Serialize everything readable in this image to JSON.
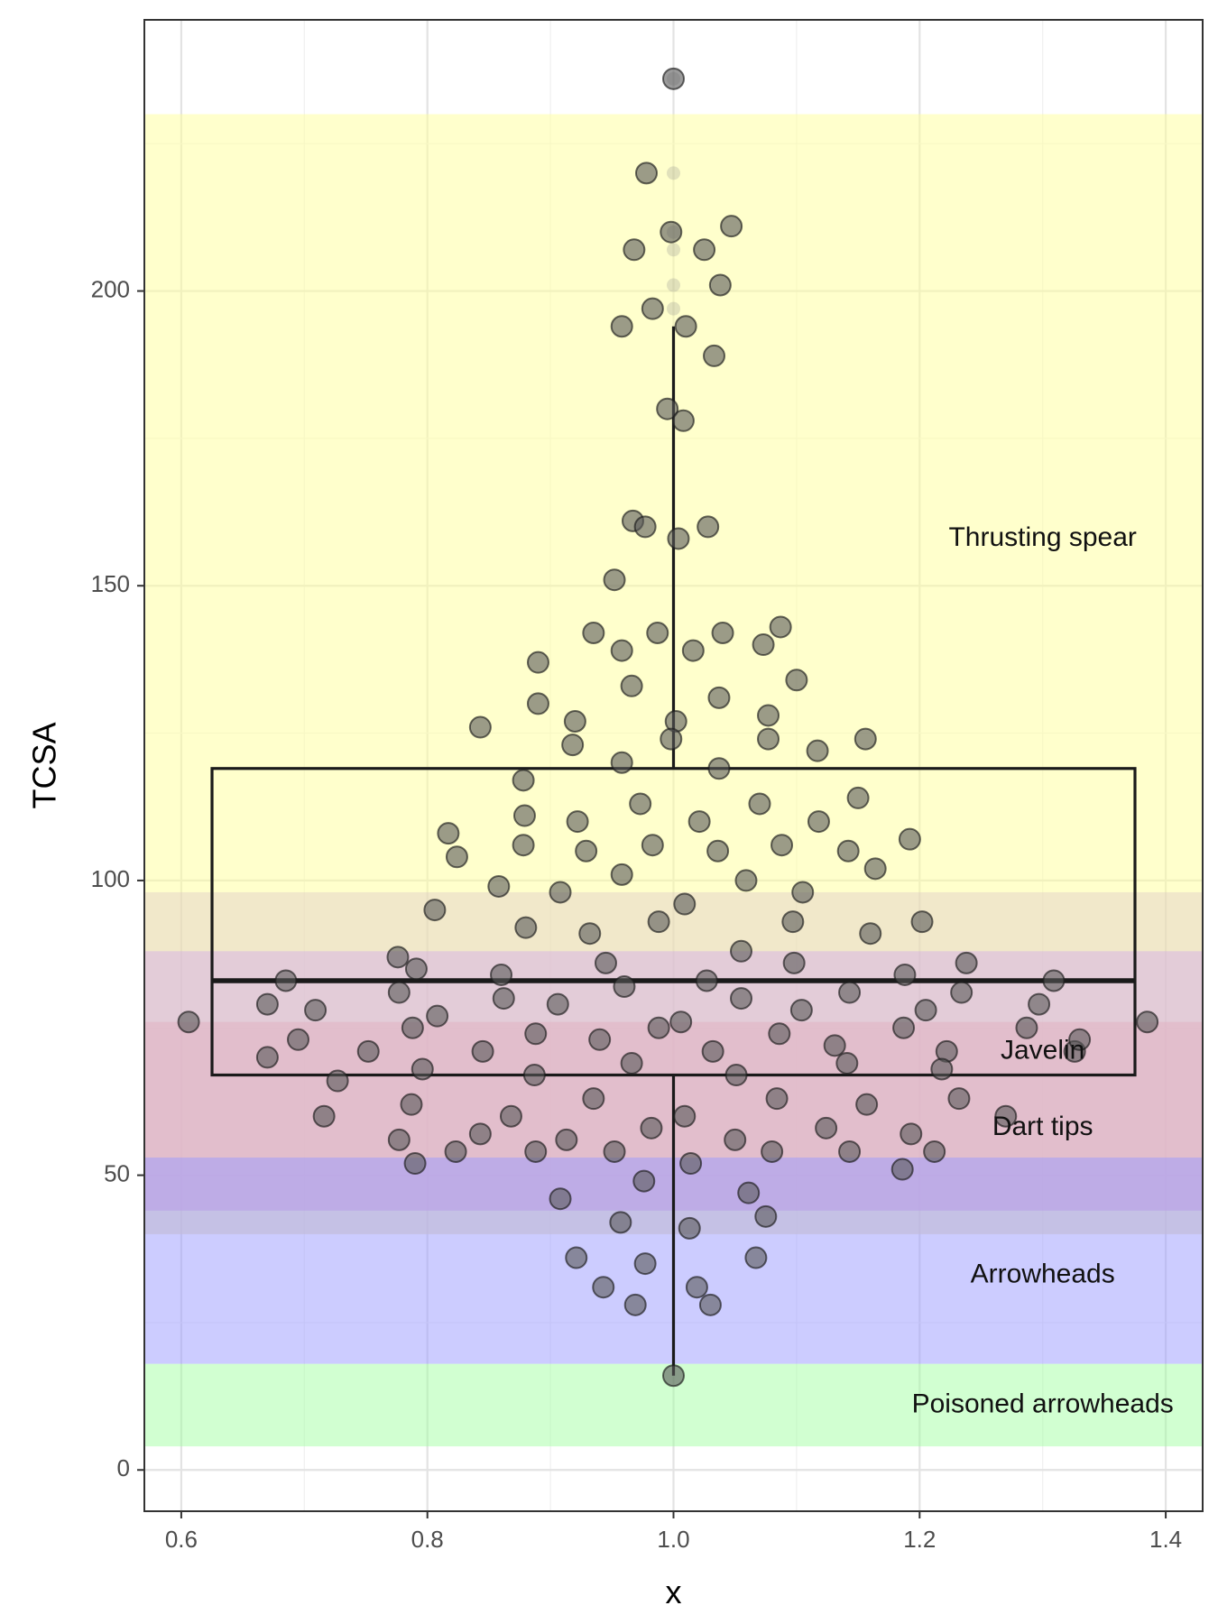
{
  "chart_data": {
    "type": "scatter",
    "subtype": "jittered points with boxplot and shaded category bands",
    "xlabel": "x",
    "ylabel": "TCSA",
    "xlim": [
      0.57,
      1.43
    ],
    "ylim": [
      -7,
      246
    ],
    "x_ticks": [
      0.6,
      0.8,
      1.0,
      1.2,
      1.4
    ],
    "x_tick_labels": [
      "0.6",
      "0.8",
      "1.0",
      "1.2",
      "1.4"
    ],
    "y_ticks": [
      0,
      50,
      100,
      150,
      200
    ],
    "y_tick_labels": [
      "0",
      "50",
      "100",
      "150",
      "200"
    ],
    "grid": true,
    "bands": [
      {
        "label": "Thrusting spear",
        "ymin": 40,
        "ymax": 230,
        "color": "#ffff99",
        "opacity": 0.5,
        "label_y": 158
      },
      {
        "label": "Javelin",
        "ymin": 44,
        "ymax": 88,
        "color": "#cc99ff",
        "opacity": 0.45,
        "label_y": 71
      },
      {
        "label": "Dart tips",
        "ymin": 44,
        "ymax": 76,
        "color": "#e6a1bb",
        "opacity": 0.5,
        "label_y": 58
      },
      {
        "label": "",
        "ymin": 40,
        "ymax": 98,
        "color": "#dcc5c8",
        "opacity": 0.4,
        "label_y": null
      },
      {
        "label": "Arrowheads",
        "ymin": 18,
        "ymax": 53,
        "color": "#9999ff",
        "opacity": 0.5,
        "label_y": 33
      },
      {
        "label": "Poisoned arrowheads",
        "ymin": 4,
        "ymax": 18,
        "color": "#99ff99",
        "opacity": 0.45,
        "label_y": 11
      }
    ],
    "boxplot": {
      "x": 1.0,
      "width": 0.75,
      "min": 16,
      "q1": 67,
      "median": 83,
      "q3": 119,
      "whisker_max": 194,
      "outliers": [
        197,
        201,
        207,
        210,
        220,
        236
      ]
    },
    "series": [
      {
        "color": "#595959",
        "points": [
          [
            1.0,
            236
          ],
          [
            0.978,
            220
          ],
          [
            0.968,
            207
          ],
          [
            0.998,
            210
          ],
          [
            1.025,
            207
          ],
          [
            1.047,
            211
          ],
          [
            0.983,
            197
          ],
          [
            1.038,
            201
          ],
          [
            0.958,
            194
          ],
          [
            1.01,
            194
          ],
          [
            1.033,
            189
          ],
          [
            0.995,
            180
          ],
          [
            1.008,
            178
          ],
          [
            0.967,
            161
          ],
          [
            0.977,
            160
          ],
          [
            1.004,
            158
          ],
          [
            1.028,
            160
          ],
          [
            0.952,
            151
          ],
          [
            0.89,
            137
          ],
          [
            0.935,
            142
          ],
          [
            0.958,
            139
          ],
          [
            0.987,
            142
          ],
          [
            1.016,
            139
          ],
          [
            1.04,
            142
          ],
          [
            1.073,
            140
          ],
          [
            1.087,
            143
          ],
          [
            0.89,
            130
          ],
          [
            0.92,
            127
          ],
          [
            0.966,
            133
          ],
          [
            1.002,
            127
          ],
          [
            1.037,
            131
          ],
          [
            1.077,
            128
          ],
          [
            1.1,
            134
          ],
          [
            0.843,
            126
          ],
          [
            0.918,
            123
          ],
          [
            0.998,
            124
          ],
          [
            1.077,
            124
          ],
          [
            1.117,
            122
          ],
          [
            1.156,
            124
          ],
          [
            0.878,
            117
          ],
          [
            0.958,
            120
          ],
          [
            1.037,
            119
          ],
          [
            0.879,
            111
          ],
          [
            0.973,
            113
          ],
          [
            1.07,
            113
          ],
          [
            1.15,
            114
          ],
          [
            0.817,
            108
          ],
          [
            0.824,
            104
          ],
          [
            0.878,
            106
          ],
          [
            0.922,
            110
          ],
          [
            0.929,
            105
          ],
          [
            0.983,
            106
          ],
          [
            1.021,
            110
          ],
          [
            1.036,
            105
          ],
          [
            1.088,
            106
          ],
          [
            1.118,
            110
          ],
          [
            1.142,
            105
          ],
          [
            1.192,
            107
          ],
          [
            0.858,
            99
          ],
          [
            0.908,
            98
          ],
          [
            0.958,
            101
          ],
          [
            1.059,
            100
          ],
          [
            1.105,
            98
          ],
          [
            1.164,
            102
          ],
          [
            0.806,
            95
          ],
          [
            0.88,
            92
          ],
          [
            0.932,
            91
          ],
          [
            0.988,
            93
          ],
          [
            1.009,
            96
          ],
          [
            1.097,
            93
          ],
          [
            1.16,
            91
          ],
          [
            1.202,
            93
          ],
          [
            0.776,
            87
          ],
          [
            0.685,
            83
          ],
          [
            0.791,
            85
          ],
          [
            0.86,
            84
          ],
          [
            0.945,
            86
          ],
          [
            1.027,
            83
          ],
          [
            1.055,
            88
          ],
          [
            1.098,
            86
          ],
          [
            1.188,
            84
          ],
          [
            1.238,
            86
          ],
          [
            1.309,
            83
          ],
          [
            0.67,
            79
          ],
          [
            0.709,
            78
          ],
          [
            0.777,
            81
          ],
          [
            0.808,
            77
          ],
          [
            0.862,
            80
          ],
          [
            0.906,
            79
          ],
          [
            0.96,
            82
          ],
          [
            1.055,
            80
          ],
          [
            1.104,
            78
          ],
          [
            1.143,
            81
          ],
          [
            1.205,
            78
          ],
          [
            1.234,
            81
          ],
          [
            1.297,
            79
          ],
          [
            0.606,
            76
          ],
          [
            0.695,
            73
          ],
          [
            0.752,
            71
          ],
          [
            0.788,
            75
          ],
          [
            0.845,
            71
          ],
          [
            0.888,
            74
          ],
          [
            0.94,
            73
          ],
          [
            0.988,
            75
          ],
          [
            1.006,
            76
          ],
          [
            1.032,
            71
          ],
          [
            1.086,
            74
          ],
          [
            1.131,
            72
          ],
          [
            1.187,
            75
          ],
          [
            1.222,
            71
          ],
          [
            1.287,
            75
          ],
          [
            1.326,
            71
          ],
          [
            1.33,
            73
          ],
          [
            1.385,
            76
          ],
          [
            0.67,
            70
          ],
          [
            0.727,
            66
          ],
          [
            0.796,
            68
          ],
          [
            0.887,
            67
          ],
          [
            0.966,
            69
          ],
          [
            1.051,
            67
          ],
          [
            1.141,
            69
          ],
          [
            1.218,
            68
          ],
          [
            0.716,
            60
          ],
          [
            0.787,
            62
          ],
          [
            0.868,
            60
          ],
          [
            0.935,
            63
          ],
          [
            0.982,
            58
          ],
          [
            1.009,
            60
          ],
          [
            1.084,
            63
          ],
          [
            1.124,
            58
          ],
          [
            1.157,
            62
          ],
          [
            1.232,
            63
          ],
          [
            1.27,
            60
          ],
          [
            0.777,
            56
          ],
          [
            0.823,
            54
          ],
          [
            0.843,
            57
          ],
          [
            0.888,
            54
          ],
          [
            0.913,
            56
          ],
          [
            0.952,
            54
          ],
          [
            1.05,
            56
          ],
          [
            1.08,
            54
          ],
          [
            1.143,
            54
          ],
          [
            1.193,
            57
          ],
          [
            1.212,
            54
          ],
          [
            0.79,
            52
          ],
          [
            0.976,
            49
          ],
          [
            1.014,
            52
          ],
          [
            1.186,
            51
          ],
          [
            0.908,
            46
          ],
          [
            0.957,
            42
          ],
          [
            1.061,
            47
          ],
          [
            1.075,
            43
          ],
          [
            1.013,
            41
          ],
          [
            0.921,
            36
          ],
          [
            0.977,
            35
          ],
          [
            1.067,
            36
          ],
          [
            0.943,
            31
          ],
          [
            0.969,
            28
          ],
          [
            1.019,
            31
          ],
          [
            1.03,
            28
          ],
          [
            1.0,
            16
          ]
        ]
      }
    ]
  }
}
